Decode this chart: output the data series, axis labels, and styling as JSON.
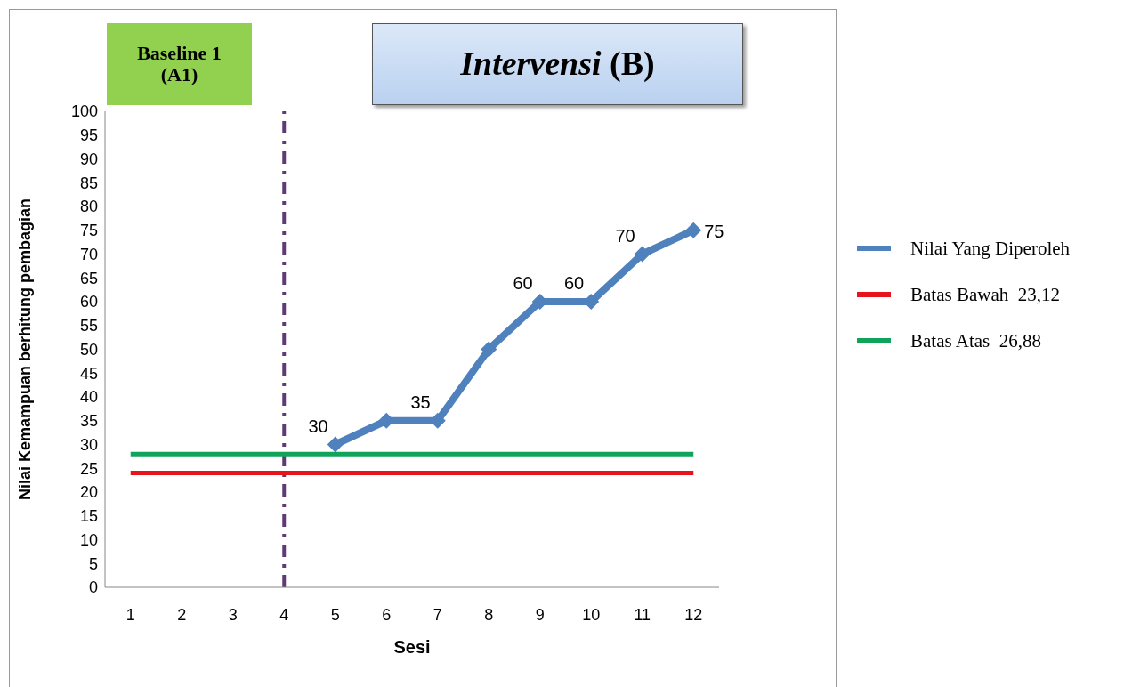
{
  "chart_data": {
    "type": "line",
    "ylabel": "Nilai Kemampuan berhitung pembagian",
    "xlabel": "Sesi",
    "annotations": [
      "Baseline 1 (A1)",
      "Intervensi (B)"
    ],
    "x": [
      1,
      2,
      3,
      4,
      5,
      6,
      7,
      8,
      9,
      10,
      11,
      12
    ],
    "xlim": [
      0.5,
      12.5
    ],
    "xticks": [
      1,
      2,
      3,
      4,
      5,
      6,
      7,
      8,
      9,
      10,
      11,
      12
    ],
    "ylim": [
      0,
      100
    ],
    "yticks": [
      0,
      5,
      10,
      15,
      20,
      25,
      30,
      35,
      40,
      45,
      50,
      55,
      60,
      65,
      70,
      75,
      80,
      85,
      90,
      95,
      100
    ],
    "series": [
      {
        "name": "Nilai Yang Diperoleh",
        "color": "#4f81bd",
        "marker": "diamond",
        "values": [
          null,
          null,
          null,
          null,
          30,
          35,
          35,
          50,
          60,
          60,
          70,
          75
        ],
        "value_labels": [
          null,
          null,
          null,
          null,
          "30",
          null,
          "35",
          null,
          "60",
          "60",
          "70",
          "75"
        ]
      },
      {
        "name": "Batas Bawah  23,12",
        "color": "#e8141c",
        "values": [
          24,
          24,
          24,
          24,
          24,
          24,
          24,
          24,
          24,
          24,
          24,
          24
        ]
      },
      {
        "name": "Batas Atas  26,88",
        "color": "#10a35a",
        "values": [
          28,
          28,
          28,
          28,
          28,
          28,
          28,
          28,
          28,
          28,
          28,
          28
        ]
      }
    ],
    "ref_lines": [
      {
        "axis": "x",
        "value": 4,
        "color": "#5f3b73",
        "line_style": "dashed"
      }
    ],
    "legend": "right",
    "grid": false
  }
}
